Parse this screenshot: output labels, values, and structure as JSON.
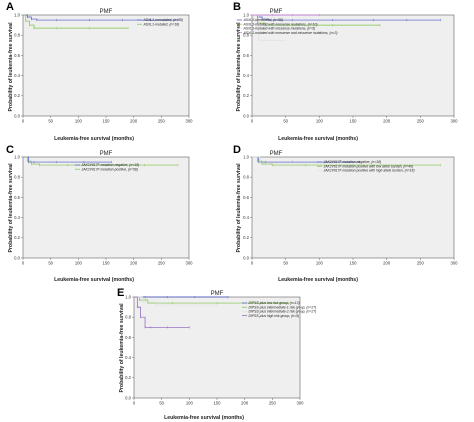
{
  "figure": {
    "panels": [
      {
        "letter": "A",
        "title": "PMF"
      },
      {
        "letter": "B",
        "title": "PMF"
      },
      {
        "letter": "C",
        "title": "PMF"
      },
      {
        "letter": "D",
        "title": "PMF"
      },
      {
        "letter": "E",
        "title": "PMF"
      }
    ]
  },
  "chart_data": [
    {
      "panel": "A",
      "type": "line",
      "title": "PMF",
      "xlabel": "Leukemia-free survival (months)",
      "ylabel": "Probability of leukemia-free survival",
      "xlim": [
        0,
        300
      ],
      "ylim": [
        0.0,
        1.0
      ],
      "xticks": [
        0,
        50,
        100,
        150,
        200,
        250,
        300
      ],
      "yticks": [
        0.0,
        0.2,
        0.4,
        0.6,
        0.8,
        1.0
      ],
      "tick_labels_x": [
        "0",
        "50",
        "100",
        "150",
        "200",
        "250",
        "300"
      ],
      "tick_labels_y": [
        "0.0",
        "0.2",
        "0.4",
        "0.6",
        "0.8",
        "1.0"
      ],
      "legend_position": "top-right",
      "series": [
        {
          "name": "ASXL1-unmutated, (n=58)",
          "color": "#4a58c8",
          "x": [
            0,
            8,
            15,
            25,
            60,
            120,
            180,
            230,
            280
          ],
          "y": [
            1.0,
            0.98,
            0.96,
            0.95,
            0.95,
            0.95,
            0.95,
            0.95,
            0.95
          ]
        },
        {
          "name": "ASXL1-mutated, (n=18)",
          "color": "#7cc447",
          "x": [
            0,
            5,
            12,
            20,
            60,
            120,
            190
          ],
          "y": [
            1.0,
            0.94,
            0.9,
            0.87,
            0.87,
            0.87,
            0.87
          ]
        }
      ]
    },
    {
      "panel": "B",
      "type": "line",
      "title": "PMF",
      "xlabel": "Leukemia-free survival (months)",
      "ylabel": "Probability of leukemia-free survival",
      "xlim": [
        0,
        300
      ],
      "ylim": [
        0.0,
        1.0
      ],
      "xticks": [
        0,
        50,
        100,
        150,
        200,
        250,
        300
      ],
      "yticks": [
        0.0,
        0.2,
        0.4,
        0.6,
        0.8,
        1.0
      ],
      "tick_labels_x": [
        "0",
        "50",
        "100",
        "150",
        "200",
        "250",
        "300"
      ],
      "tick_labels_y": [
        "0.0",
        "0.2",
        "0.4",
        "0.6",
        "0.8",
        "1.0"
      ],
      "legend_position": "top-right",
      "series": [
        {
          "name": "ASXL1-unmutated, (n=58)",
          "color": "#4a58c8",
          "x": [
            0,
            8,
            15,
            25,
            60,
            120,
            180,
            230,
            280
          ],
          "y": [
            1.0,
            0.98,
            0.96,
            0.95,
            0.95,
            0.95,
            0.95,
            0.95,
            0.95
          ]
        },
        {
          "name": "ASXL1-mutated with nonsense mutations, (n=10)",
          "color": "#7cc447",
          "x": [
            0,
            8,
            20,
            60,
            120,
            190
          ],
          "y": [
            1.0,
            0.92,
            0.9,
            0.9,
            0.9,
            0.9
          ]
        },
        {
          "name": "ASXL1-mutated with missense mutations, (n=5)",
          "color": "#e1e1e1",
          "x": [
            0,
            10,
            30,
            50
          ],
          "y": [
            1.0,
            0.75,
            0.75,
            0.75
          ]
        },
        {
          "name": "ASXL1-mutated with nonsense and missense mutations, (n=3)",
          "color": "#c77ad8",
          "x": [
            0,
            30,
            60,
            100
          ],
          "y": [
            1.0,
            1.0,
            1.0,
            1.0
          ]
        }
      ]
    },
    {
      "panel": "C",
      "type": "line",
      "title": "PMF",
      "xlabel": "Leukemia-free survival (months)",
      "ylabel": "Probability of leukemia-free survival",
      "xlim": [
        0,
        300
      ],
      "ylim": [
        0.0,
        1.0
      ],
      "xticks": [
        0,
        50,
        100,
        150,
        200,
        250,
        300
      ],
      "yticks": [
        0.0,
        0.2,
        0.4,
        0.6,
        0.8,
        1.0
      ],
      "tick_labels_x": [
        "0",
        "50",
        "100",
        "150",
        "200",
        "250",
        "300"
      ],
      "tick_labels_y": [
        "0.0",
        "0.2",
        "0.4",
        "0.6",
        "0.8",
        "1.0"
      ],
      "legend_position": "top-right",
      "series": [
        {
          "name": "JAK2V617F mutation-negative, (n=18)",
          "color": "#4a58c8",
          "x": [
            0,
            10,
            20,
            60,
            110,
            160
          ],
          "y": [
            1.0,
            0.95,
            0.95,
            0.95,
            0.95,
            0.95
          ]
        },
        {
          "name": "JAK2V617F mutation-positive, (n=58)",
          "color": "#7cc447",
          "x": [
            0,
            8,
            15,
            30,
            80,
            150,
            220,
            280
          ],
          "y": [
            1.0,
            0.96,
            0.93,
            0.92,
            0.92,
            0.92,
            0.92,
            0.92
          ]
        }
      ]
    },
    {
      "panel": "D",
      "type": "line",
      "title": "PMF",
      "xlabel": "Leukemia-free survival (months)",
      "ylabel": "Probability of leukemia-free survival",
      "xlim": [
        0,
        300
      ],
      "ylim": [
        0.0,
        1.0
      ],
      "xticks": [
        0,
        50,
        100,
        150,
        200,
        250,
        300
      ],
      "yticks": [
        0.0,
        0.2,
        0.4,
        0.6,
        0.8,
        1.0
      ],
      "tick_labels_x": [
        "0",
        "50",
        "100",
        "150",
        "200",
        "250",
        "300"
      ],
      "tick_labels_y": [
        "0.0",
        "0.2",
        "0.4",
        "0.6",
        "0.8",
        "1.0"
      ],
      "legend_position": "top-right",
      "series": [
        {
          "name": "JAK2V617F mutation-negative, (n=18)",
          "color": "#4a58c8",
          "x": [
            0,
            10,
            20,
            60,
            110,
            160
          ],
          "y": [
            1.0,
            0.95,
            0.95,
            0.95,
            0.95,
            0.95
          ]
        },
        {
          "name": "JAK2V617F mutation-positive with low allele burden, (n=40)",
          "color": "#7cc447",
          "x": [
            0,
            8,
            15,
            30,
            80,
            150,
            220,
            280
          ],
          "y": [
            1.0,
            0.96,
            0.93,
            0.92,
            0.92,
            0.92,
            0.92,
            0.92
          ]
        },
        {
          "name": "JAK2V617F mutation-positive with high allele burden, (n=18)",
          "color": "#e1e1e1",
          "x": [
            0,
            12,
            25,
            60,
            120
          ],
          "y": [
            1.0,
            0.94,
            0.94,
            0.94,
            0.94
          ]
        }
      ]
    },
    {
      "panel": "E",
      "type": "line",
      "title": "PMF",
      "xlabel": "Leukemia-free survival (months)",
      "ylabel": "Probability of leukemia-free survival",
      "xlim": [
        0,
        300
      ],
      "ylim": [
        0.0,
        1.0
      ],
      "xticks": [
        0,
        50,
        100,
        150,
        200,
        250,
        300
      ],
      "yticks": [
        0.0,
        0.2,
        0.4,
        0.6,
        0.8,
        1.0
      ],
      "tick_labels_x": [
        "0",
        "50",
        "100",
        "150",
        "200",
        "250",
        "300"
      ],
      "tick_labels_y": [
        "0.0",
        "0.2",
        "0.4",
        "0.6",
        "0.8",
        "1.0"
      ],
      "legend_position": "top-right",
      "series": [
        {
          "name": "DIPSS-plus low risk group, (n=13)",
          "color": "#4a58c8",
          "x": [
            0,
            20,
            60,
            110,
            170
          ],
          "y": [
            1.0,
            1.0,
            1.0,
            1.0,
            1.0
          ]
        },
        {
          "name": "DIPSS-plus intermediate-1 risk group, (n=27)",
          "color": "#7cc447",
          "x": [
            0,
            10,
            25,
            70,
            150,
            230,
            280
          ],
          "y": [
            1.0,
            0.97,
            0.94,
            0.94,
            0.94,
            0.94,
            0.94
          ]
        },
        {
          "name": "DIPSS-plus intermediate-2 risk group, (n=27)",
          "color": "#e1e1e1",
          "x": [
            0,
            15,
            40,
            90,
            150
          ],
          "y": [
            1.0,
            0.95,
            0.92,
            0.92,
            0.92
          ]
        },
        {
          "name": "DIPSS-plus high risk group, (n=9)",
          "color": "#8c5bbf",
          "x": [
            0,
            6,
            12,
            20,
            30,
            60,
            100
          ],
          "y": [
            1.0,
            0.9,
            0.8,
            0.7,
            0.7,
            0.7,
            0.7
          ]
        }
      ]
    }
  ]
}
